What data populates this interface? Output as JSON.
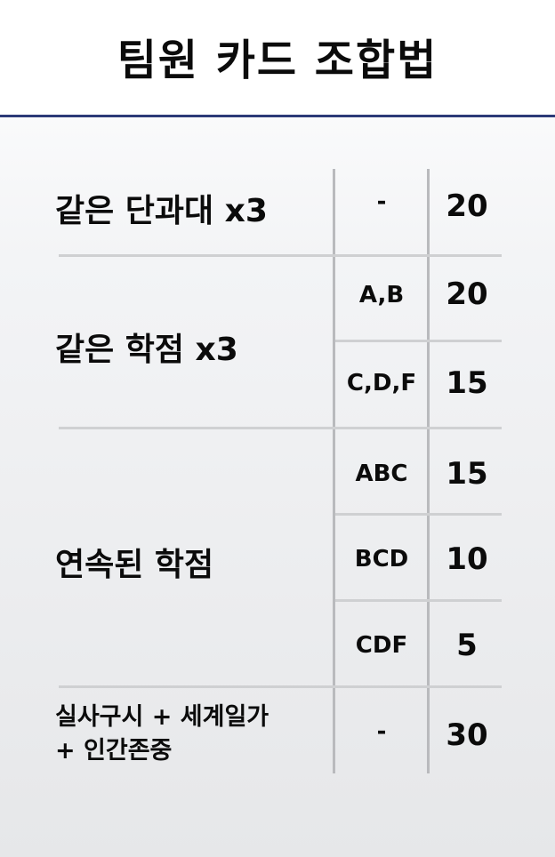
{
  "title": "팀원 카드 조합법",
  "rows": [
    {
      "name": "같은 단과대 x3",
      "condition": "-",
      "points": "20"
    },
    {
      "name": "같은 학점 x3",
      "sub": [
        {
          "condition": "A,B",
          "points": "20"
        },
        {
          "condition": "C,D,F",
          "points": "15"
        }
      ]
    },
    {
      "name": "연속된 학점",
      "sub": [
        {
          "condition": "ABC",
          "points": "15"
        },
        {
          "condition": "BCD",
          "points": "10"
        },
        {
          "condition": "CDF",
          "points": "5"
        }
      ]
    },
    {
      "name_line1": "실사구시 + 세계일가",
      "name_line2": "+ 인간존중",
      "condition": "-",
      "points": "30"
    }
  ],
  "colors": {
    "header_rule": "#2c3a78",
    "text": "#0b0b0b",
    "divider": "#cfd0d2"
  }
}
